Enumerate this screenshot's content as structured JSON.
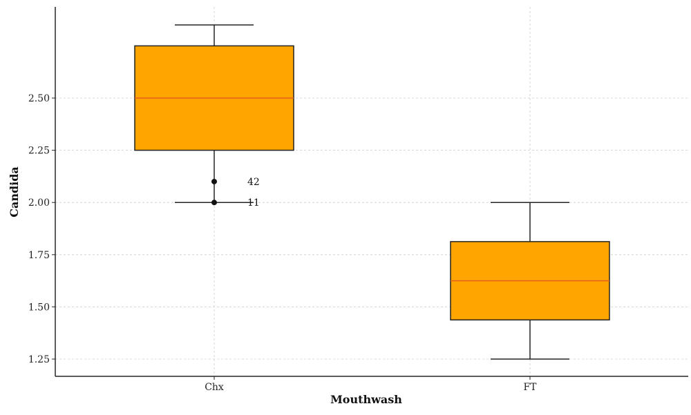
{
  "chart_data": {
    "type": "box",
    "xlabel": "Mouthwash",
    "ylabel": "Candida",
    "ylim": [
      1.16,
      2.92
    ],
    "yticks": [
      1.25,
      1.5,
      1.75,
      2.0,
      2.25,
      2.5
    ],
    "ytick_labels": [
      "1.25",
      "1.50",
      "1.75",
      "2.00",
      "2.25",
      "2.50"
    ],
    "grid": true,
    "colors": {
      "box_fill": "#FFA500",
      "box_edge": "#222222",
      "median": "#E8601C",
      "grid": "#cccccc"
    },
    "categories": [
      "Chx",
      "FT"
    ],
    "boxes": [
      {
        "name": "Chx",
        "whisker_low": 2.0,
        "q1": 2.25,
        "median": 2.5,
        "q3": 2.75,
        "whisker_high": 2.85,
        "outliers": [
          {
            "value": 2.1,
            "label": "42"
          },
          {
            "value": 2.0,
            "label": "11"
          }
        ]
      },
      {
        "name": "FT",
        "whisker_low": 1.25,
        "q1": 1.4375,
        "median": 1.625,
        "q3": 1.8125,
        "whisker_high": 2.0,
        "outliers": []
      }
    ]
  }
}
